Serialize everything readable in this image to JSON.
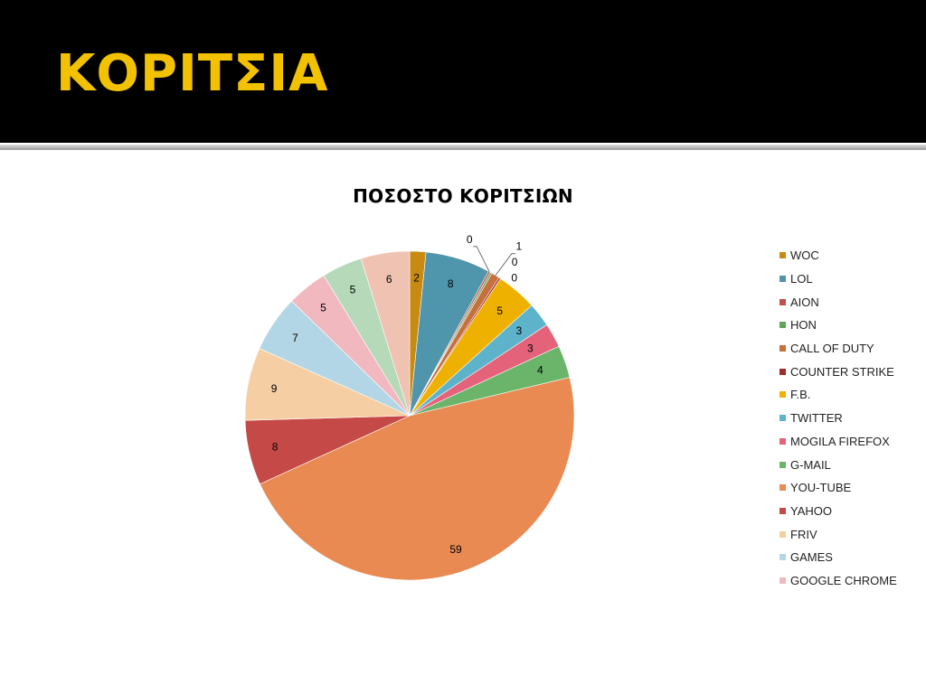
{
  "slide": {
    "title": "ΚΟΡΙΤΣΙΑ"
  },
  "chart_data": {
    "type": "pie",
    "title": "ΠΟΣΟΣΤΟ ΚΟΡΙΤΣΙΩΝ",
    "categories": [
      "WOC",
      "LOL",
      "AION",
      "HON",
      "CALL OF DUTY",
      "COUNTER STRIKE",
      "F.B.",
      "TWITTER",
      "MOGILA FIREFOX",
      "G-MAIL",
      "YOU-TUBE",
      "YAHOO",
      "FRIV",
      "GAMES",
      "GOOGLE CHROME",
      "",
      ""
    ],
    "values": [
      2,
      8,
      0,
      0,
      1,
      0,
      5,
      3,
      3,
      4,
      59,
      8,
      9,
      7,
      5,
      5,
      6
    ],
    "colors": [
      "#c88a10",
      "#4f95ab",
      "#c0504d",
      "#5fa55a",
      "#c8703c",
      "#9b3030",
      "#efb100",
      "#5db3c9",
      "#e5637a",
      "#6ab56a",
      "#e98a52",
      "#c54a47",
      "#f5cfa3",
      "#b2d6e5",
      "#f1b8c0",
      "#b5d9b9",
      "#f0c2b2"
    ],
    "legend_count": 15,
    "legend_position": "right",
    "data_labels": true
  }
}
